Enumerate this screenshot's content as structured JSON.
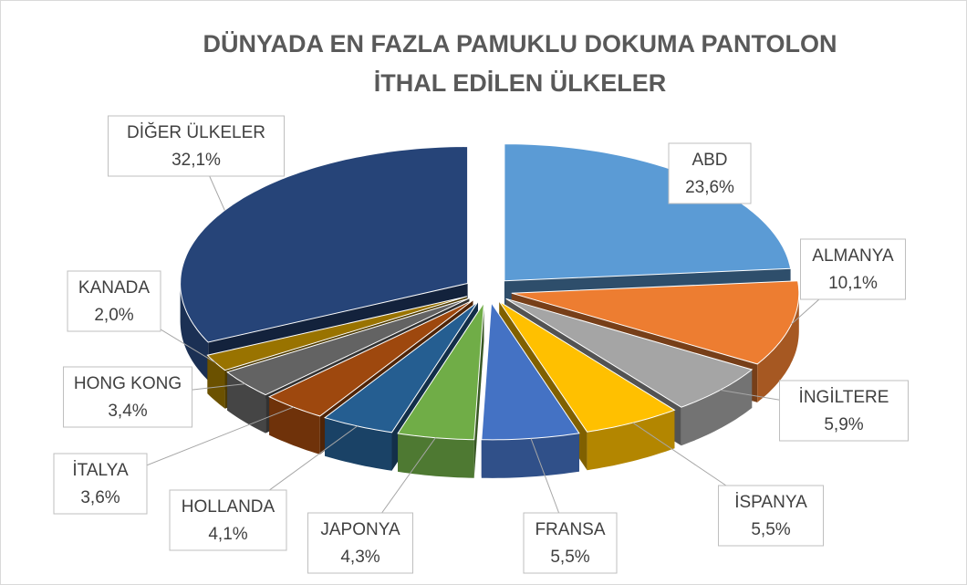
{
  "chart_data": {
    "type": "pie3d",
    "title": [
      "DÜNYADA EN FAZLA PAMUKLU DOKUMA PANTOLON",
      "İTHAL EDİLEN ÜLKELER"
    ],
    "categories": [
      "ABD",
      "ALMANYA",
      "İNGİLTERE",
      "İSPANYA",
      "FRANSA",
      "JAPONYA",
      "HOLLANDA",
      "İTALYA",
      "HONG KONG",
      "KANADA",
      "DİĞER ÜLKELER"
    ],
    "values": [
      23.6,
      10.1,
      5.9,
      5.5,
      5.5,
      4.3,
      4.1,
      3.6,
      3.4,
      2.0,
      32.1
    ],
    "value_labels": [
      "23,6%",
      "10,1%",
      "5,9%",
      "5,5%",
      "5,5%",
      "4,3%",
      "4,1%",
      "3,6%",
      "3,4%",
      "2,0%",
      "32,1%"
    ],
    "colors": [
      "#5b9bd5",
      "#ed7d31",
      "#a5a5a5",
      "#ffc000",
      "#4472c4",
      "#70ad47",
      "#255e91",
      "#9e480e",
      "#636363",
      "#997300",
      "#264478"
    ]
  }
}
